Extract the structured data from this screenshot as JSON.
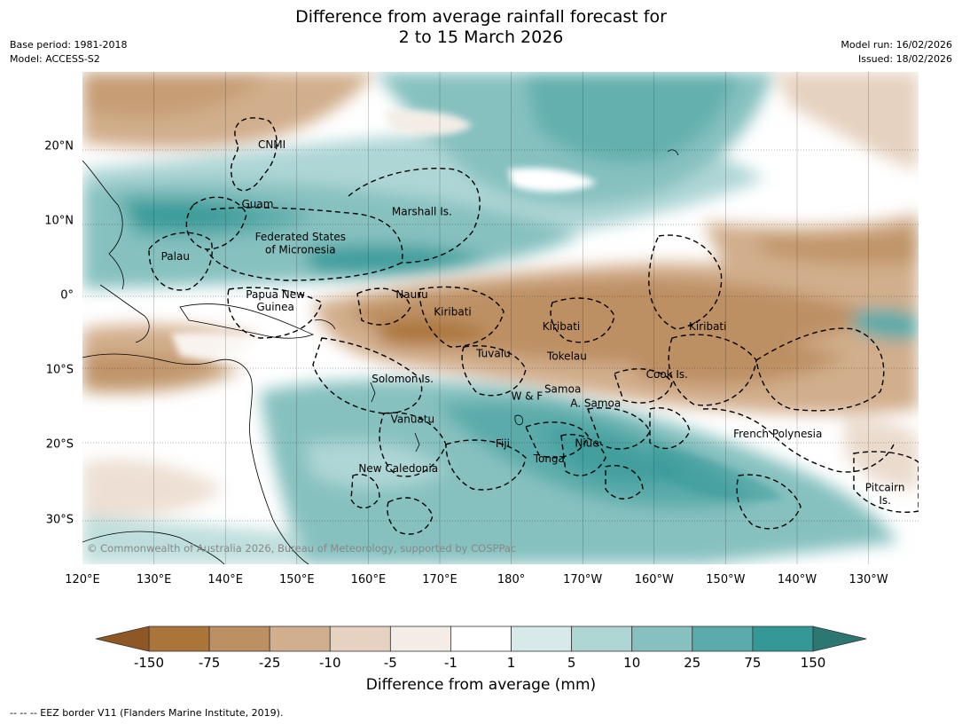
{
  "title": {
    "line1": "Difference from average rainfall forecast for",
    "line2": "2 to 15 March 2026"
  },
  "meta": {
    "base_period": "Base period: 1981-2018",
    "model": "Model: ACCESS-S2",
    "model_run": "Model run: 16/02/2026",
    "issued": "Issued: 18/02/2026"
  },
  "map": {
    "lon_range": [
      120,
      237
    ],
    "lat_range": [
      -36,
      30
    ],
    "x_ticks": [
      {
        "lon": 120,
        "label": "120°E"
      },
      {
        "lon": 130,
        "label": "130°E"
      },
      {
        "lon": 140,
        "label": "140°E"
      },
      {
        "lon": 150,
        "label": "150°E"
      },
      {
        "lon": 160,
        "label": "160°E"
      },
      {
        "lon": 170,
        "label": "170°E"
      },
      {
        "lon": 180,
        "label": "180°"
      },
      {
        "lon": 190,
        "label": "170°W"
      },
      {
        "lon": 200,
        "label": "160°W"
      },
      {
        "lon": 210,
        "label": "150°W"
      },
      {
        "lon": 220,
        "label": "140°W"
      },
      {
        "lon": 230,
        "label": "130°W"
      }
    ],
    "y_ticks": [
      {
        "lat": 20,
        "label": "20°N"
      },
      {
        "lat": 10,
        "label": "10°N"
      },
      {
        "lat": 0,
        "label": "0°"
      },
      {
        "lat": -10,
        "label": "10°S"
      },
      {
        "lat": -20,
        "label": "20°S"
      },
      {
        "lat": -30,
        "label": "30°S"
      }
    ],
    "regions": [
      {
        "name": "CNMI",
        "lon": 146.5,
        "lat": 20.2
      },
      {
        "name": "Guam",
        "lon": 144.5,
        "lat": 12.2
      },
      {
        "name": "Marshall Is.",
        "lon": 167.5,
        "lat": 11.2
      },
      {
        "name": "Federated States",
        "lon": 150.5,
        "lat": 7.8
      },
      {
        "name": "of Micronesia",
        "lon": 150.5,
        "lat": 6.1
      },
      {
        "name": "Palau",
        "lon": 133,
        "lat": 5.2
      },
      {
        "name": "Papua New",
        "lon": 147,
        "lat": 0.1
      },
      {
        "name": "Guinea",
        "lon": 147,
        "lat": -1.6
      },
      {
        "name": "Nauru",
        "lon": 166.1,
        "lat": 0.1
      },
      {
        "name": "Kiribati",
        "lon": 171.8,
        "lat": -2.2
      },
      {
        "name": "Kiribati",
        "lon": 187,
        "lat": -4.2
      },
      {
        "name": "Kiribati",
        "lon": 207.5,
        "lat": -4.2
      },
      {
        "name": "Tuvalu",
        "lon": 177.5,
        "lat": -7.8
      },
      {
        "name": "Tokelau",
        "lon": 187.8,
        "lat": -8.2
      },
      {
        "name": "Cook Is.",
        "lon": 201.8,
        "lat": -10.6
      },
      {
        "name": "Solomon Is.",
        "lon": 164.8,
        "lat": -11.2
      },
      {
        "name": "Samoa",
        "lon": 187.2,
        "lat": -12.6
      },
      {
        "name": "W & F",
        "lon": 182.2,
        "lat": -13.5
      },
      {
        "name": "A. Samoa",
        "lon": 191.8,
        "lat": -14.5
      },
      {
        "name": "Vanuatu",
        "lon": 166.2,
        "lat": -16.6
      },
      {
        "name": "Fiji",
        "lon": 178.8,
        "lat": -19.9
      },
      {
        "name": "Niue",
        "lon": 190.6,
        "lat": -19.8
      },
      {
        "name": "Tonga",
        "lon": 185.3,
        "lat": -21.9
      },
      {
        "name": "French Polynesia",
        "lon": 217.3,
        "lat": -18.6
      },
      {
        "name": "New Caledonia",
        "lon": 164.2,
        "lat": -23.2
      },
      {
        "name": "Pitcairn",
        "lon": 232.3,
        "lat": -25.8
      },
      {
        "name": "Is.",
        "lon": 232.3,
        "lat": -27.5
      }
    ],
    "copyright": "© Commonwealth of Australia 2026, Bureau of Meteorology, supported by COSPPac"
  },
  "colorbar": {
    "title": "Difference from average (mm)",
    "labels": [
      "-150",
      "-75",
      "-25",
      "-10",
      "-5",
      "-1",
      "1",
      "5",
      "10",
      "25",
      "75",
      "150"
    ],
    "colors": [
      "#ab7438",
      "#bd9063",
      "#d1ae8c",
      "#e6d2c0",
      "#f3ede6",
      "#ffffff",
      "#d6eae9",
      "#aed6d5",
      "#86c1c0",
      "#5aabaa",
      "#339896"
    ],
    "low_extend_color": "#8f5726",
    "high_extend_color": "#2d7772"
  },
  "footnote": "--  --  -- EEZ border V11 (Flanders Marine Institute, 2019)."
}
